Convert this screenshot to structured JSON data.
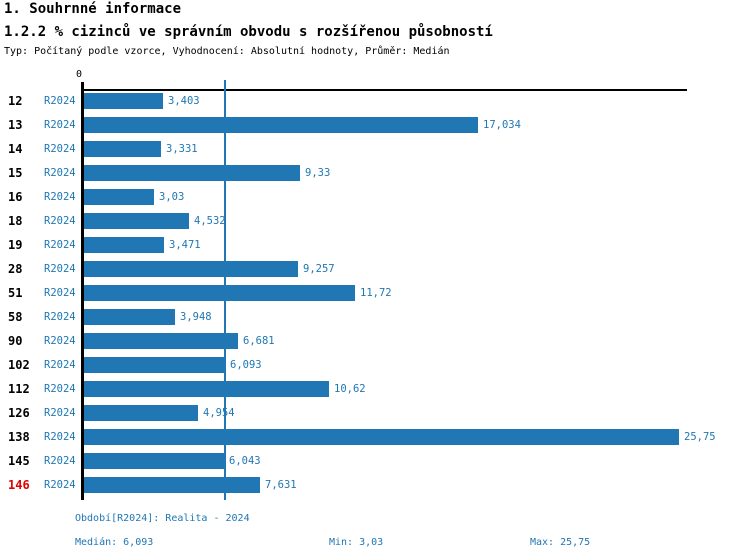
{
  "header": {
    "title": "1. Souhrnné informace",
    "subtitle": "1.2.2 % cizinců ve správním obvodu s rozšířenou působností",
    "meta": "Typ: Počítaný podle vzorce, Vyhodnocení: Absolutní hodnoty, Průměr: Medián"
  },
  "chart_data": {
    "type": "bar",
    "orientation": "horizontal",
    "axis_zero_label": "0",
    "period_label": "R2024",
    "categories": [
      "12",
      "13",
      "14",
      "15",
      "16",
      "18",
      "19",
      "28",
      "51",
      "58",
      "90",
      "102",
      "112",
      "126",
      "138",
      "145",
      "146"
    ],
    "values": [
      3.403,
      17.034,
      3.331,
      9.33,
      3.03,
      4.532,
      3.471,
      9.257,
      11.72,
      3.948,
      6.681,
      6.093,
      10.62,
      4.954,
      25.75,
      6.043,
      7.631
    ],
    "value_labels": [
      "3,403",
      "17,034",
      "3,331",
      "9,33",
      "3,03",
      "4,532",
      "3,471",
      "9,257",
      "11,72",
      "3,948",
      "6,681",
      "6,093",
      "10,62",
      "4,954",
      "25,75",
      "6,043",
      "7,631"
    ],
    "highlighted_category": "146",
    "median_value": 6.093,
    "xlim": [
      0,
      26.1
    ],
    "grid": false,
    "legend": "none",
    "bar_color": "#2077b4",
    "highlight_color": "#e00000",
    "title": "1.2.2 % cizinců ve správním obvodu s rozšířenou působností",
    "xlabel": "",
    "ylabel": ""
  },
  "footer": {
    "period_info": "Období[R2024]: Realita - 2024",
    "median": "Medián: 6,093",
    "min": "Min: 3,03",
    "max": "Max: 25,75"
  }
}
